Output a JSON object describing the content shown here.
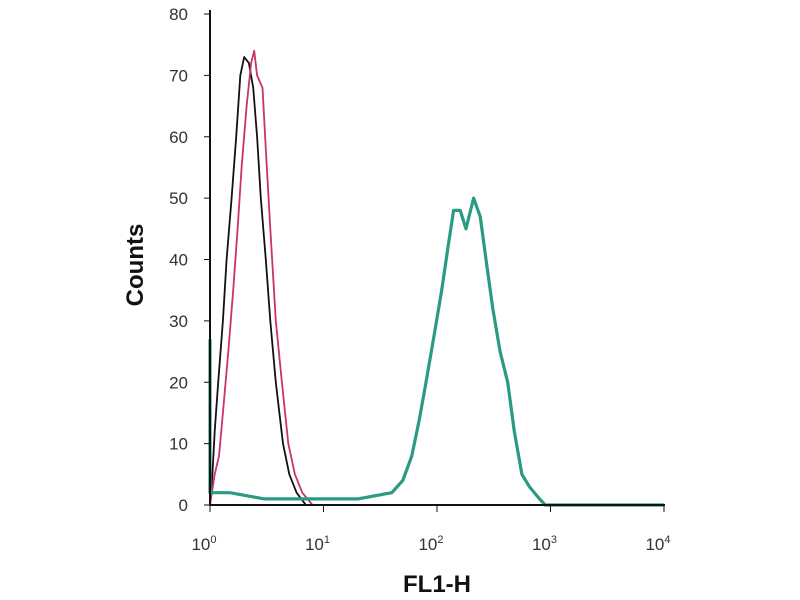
{
  "chart_data": {
    "type": "line",
    "title": "",
    "xlabel": "FL1-H",
    "ylabel": "Counts",
    "x_scale": "log",
    "xlim": [
      1,
      10000
    ],
    "ylim": [
      0,
      80
    ],
    "x_ticks": [
      {
        "base": "10",
        "exp": "0",
        "value": 1
      },
      {
        "base": "10",
        "exp": "1",
        "value": 10
      },
      {
        "base": "10",
        "exp": "2",
        "value": 100
      },
      {
        "base": "10",
        "exp": "3",
        "value": 1000
      },
      {
        "base": "10",
        "exp": "4",
        "value": 10000
      }
    ],
    "y_ticks": [
      "0",
      "10",
      "20",
      "30",
      "40",
      "50",
      "60",
      "70",
      "80"
    ],
    "grid": false,
    "legend": "none",
    "series": [
      {
        "color": "#111111",
        "points": [
          [
            1,
            80
          ],
          [
            1,
            0
          ],
          [
            1.05,
            5
          ],
          [
            1.1,
            12
          ],
          [
            1.18,
            20
          ],
          [
            1.3,
            30
          ],
          [
            1.4,
            40
          ],
          [
            1.55,
            50
          ],
          [
            1.7,
            60
          ],
          [
            1.85,
            70
          ],
          [
            2.0,
            73
          ],
          [
            2.2,
            72
          ],
          [
            2.4,
            68
          ],
          [
            2.6,
            60
          ],
          [
            2.8,
            50
          ],
          [
            3.1,
            40
          ],
          [
            3.4,
            30
          ],
          [
            3.8,
            20
          ],
          [
            4.4,
            10
          ],
          [
            5.0,
            5
          ],
          [
            5.8,
            2
          ],
          [
            7,
            0
          ]
        ]
      },
      {
        "color": "#c8326e",
        "points": [
          [
            1,
            76
          ],
          [
            1,
            0
          ],
          [
            1.1,
            5
          ],
          [
            1.2,
            8
          ],
          [
            1.3,
            15
          ],
          [
            1.45,
            25
          ],
          [
            1.6,
            35
          ],
          [
            1.75,
            45
          ],
          [
            1.9,
            55
          ],
          [
            2.1,
            65
          ],
          [
            2.3,
            72
          ],
          [
            2.45,
            74
          ],
          [
            2.6,
            70
          ],
          [
            2.9,
            68
          ],
          [
            3.1,
            58
          ],
          [
            3.4,
            45
          ],
          [
            3.8,
            30
          ],
          [
            4.3,
            20
          ],
          [
            4.9,
            10
          ],
          [
            5.6,
            5
          ],
          [
            6.5,
            2
          ],
          [
            8,
            0
          ],
          [
            10000,
            0
          ]
        ]
      },
      {
        "color": "#2a9a85",
        "points": [
          [
            1,
            27
          ],
          [
            1,
            2
          ],
          [
            1.5,
            2
          ],
          [
            3,
            1
          ],
          [
            6,
            1
          ],
          [
            10,
            1
          ],
          [
            20,
            1
          ],
          [
            40,
            2
          ],
          [
            50,
            4
          ],
          [
            60,
            8
          ],
          [
            70,
            14
          ],
          [
            80,
            20
          ],
          [
            95,
            28
          ],
          [
            110,
            35
          ],
          [
            125,
            42
          ],
          [
            140,
            48
          ],
          [
            160,
            48
          ],
          [
            180,
            45
          ],
          [
            210,
            50
          ],
          [
            240,
            47
          ],
          [
            270,
            40
          ],
          [
            310,
            32
          ],
          [
            360,
            25
          ],
          [
            420,
            20
          ],
          [
            480,
            12
          ],
          [
            560,
            5
          ],
          [
            650,
            3
          ],
          [
            800,
            1
          ],
          [
            900,
            0
          ],
          [
            10000,
            0
          ]
        ]
      }
    ]
  }
}
